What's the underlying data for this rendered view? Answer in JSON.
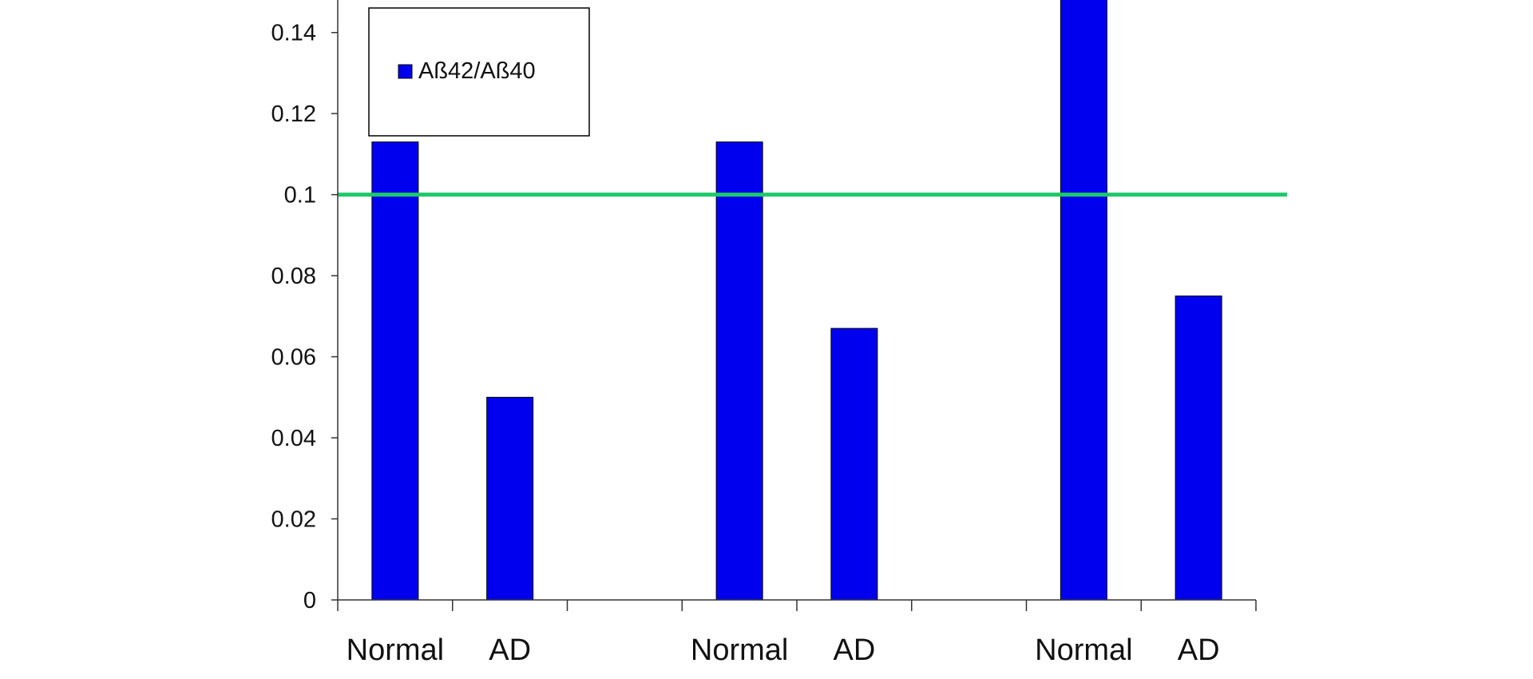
{
  "chart_data": {
    "type": "bar",
    "categories": [
      "Normal",
      "AD",
      "",
      "Normal",
      "AD",
      "",
      "Normal",
      "AD"
    ],
    "series": [
      {
        "name": "Aß42/Aß40",
        "values": [
          0.113,
          0.05,
          null,
          0.113,
          0.067,
          null,
          0.151,
          0.075
        ]
      }
    ],
    "reference_line": {
      "value": 0.1
    },
    "ylim": [
      0,
      0.15
    ],
    "yticks": [
      0,
      0.02,
      0.04,
      0.06,
      0.08,
      0.1,
      0.12,
      0.14
    ],
    "ytick_labels": [
      "0",
      "0.02",
      "0.04",
      "0.06",
      "0.08",
      "0.1",
      "0.12",
      "0.14"
    ],
    "title": "",
    "xlabel": "",
    "ylabel": "",
    "grid": false,
    "legend": {
      "placement": "top-left",
      "entries": [
        "Aß42/Aß40"
      ]
    },
    "colors": {
      "bar": "#0000ee",
      "bar_edge": "#000000",
      "reference_line": "#1ec86a",
      "axis": "#333333"
    }
  }
}
